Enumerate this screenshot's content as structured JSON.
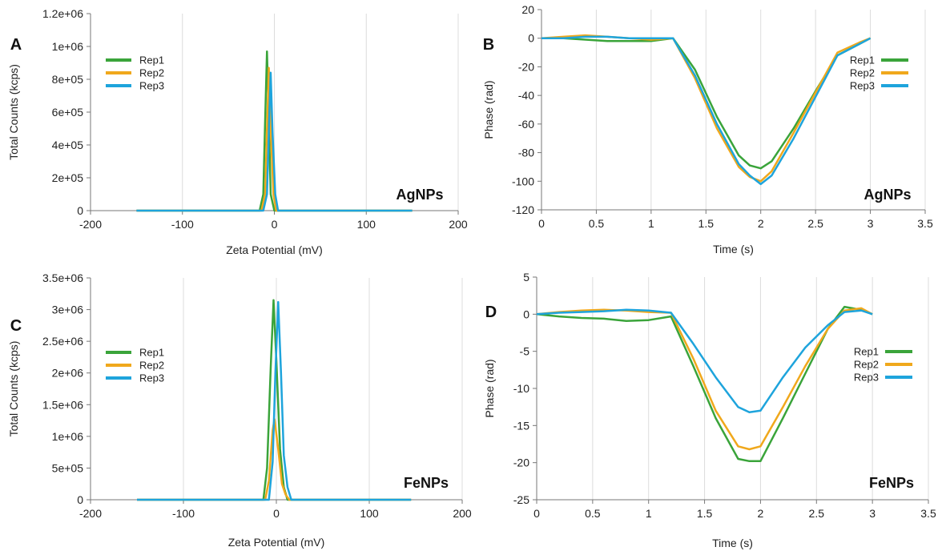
{
  "colors": {
    "Rep1": "#3aa43a",
    "Rep2": "#f0a81c",
    "Rep3": "#1ea4dc"
  },
  "chart_data": [
    {
      "panel": "A",
      "type": "line",
      "annotation": "AgNPs",
      "xlabel": "Zeta Potential (mV)",
      "ylabel": "Total Counts (kcps)",
      "xlim": [
        -200,
        200
      ],
      "ylim": [
        0,
        1200000
      ],
      "xticks": [
        -200,
        -100,
        0,
        100,
        200
      ],
      "xtick_labels": [
        "-200",
        "-100",
        "0",
        "100",
        "200"
      ],
      "yticks": [
        0,
        200000,
        400000,
        600000,
        800000,
        1000000,
        1200000
      ],
      "ytick_labels": [
        "0",
        "2e+05",
        "4e+05",
        "6e+05",
        "8e+05",
        "1e+06",
        "1.2e+06"
      ],
      "grid": true,
      "legend": "top-left",
      "series": [
        {
          "name": "Rep1",
          "color_key": "Rep1",
          "x": [
            -150,
            -16,
            -12,
            -10,
            -8,
            -6,
            -4,
            0,
            150
          ],
          "y": [
            0,
            0,
            100000,
            550000,
            970000,
            550000,
            100000,
            0,
            0
          ]
        },
        {
          "name": "Rep2",
          "color_key": "Rep2",
          "x": [
            -150,
            -14,
            -10,
            -8,
            -6,
            -4,
            -1,
            2,
            150
          ],
          "y": [
            0,
            0,
            100000,
            500000,
            870000,
            500000,
            100000,
            0,
            0
          ]
        },
        {
          "name": "Rep3",
          "color_key": "Rep3",
          "x": [
            -150,
            -12,
            -8,
            -6,
            -4,
            -2,
            1,
            4,
            150
          ],
          "y": [
            0,
            0,
            100000,
            480000,
            840000,
            480000,
            100000,
            0,
            0
          ]
        }
      ]
    },
    {
      "panel": "B",
      "type": "line",
      "annotation": "AgNPs",
      "xlabel": "Time (s)",
      "ylabel": "Phase (rad)",
      "xlim": [
        0,
        3.5
      ],
      "ylim": [
        -120,
        20
      ],
      "xticks": [
        0,
        0.5,
        1,
        1.5,
        2,
        2.5,
        3,
        3.5
      ],
      "xtick_labels": [
        "0",
        "0.5",
        "1",
        "1.5",
        "2",
        "2.5",
        "3",
        "3.5"
      ],
      "yticks": [
        -120,
        -100,
        -80,
        -60,
        -40,
        -20,
        0,
        20
      ],
      "ytick_labels": [
        "-120",
        "-100",
        "-80",
        "-60",
        "-40",
        "-20",
        "0",
        "20"
      ],
      "grid": true,
      "legend": "top-right",
      "series": [
        {
          "name": "Rep1",
          "color_key": "Rep1",
          "x": [
            0,
            0.2,
            0.4,
            0.6,
            0.8,
            1.0,
            1.2,
            1.4,
            1.6,
            1.8,
            1.9,
            2.0,
            2.1,
            2.3,
            2.5,
            2.7,
            2.9,
            3.0
          ],
          "y": [
            0,
            0,
            -1,
            -2,
            -2,
            -2,
            0,
            -22,
            -55,
            -82,
            -89,
            -91,
            -86,
            -63,
            -37,
            -12,
            -4,
            0
          ]
        },
        {
          "name": "Rep2",
          "color_key": "Rep2",
          "x": [
            0,
            0.2,
            0.4,
            0.6,
            0.8,
            1.0,
            1.2,
            1.4,
            1.6,
            1.8,
            1.9,
            2.0,
            2.1,
            2.3,
            2.5,
            2.7,
            2.9,
            3.0
          ],
          "y": [
            0,
            1,
            2,
            1,
            0,
            -1,
            0,
            -28,
            -63,
            -90,
            -97,
            -100,
            -93,
            -66,
            -38,
            -10,
            -3,
            0
          ]
        },
        {
          "name": "Rep3",
          "color_key": "Rep3",
          "x": [
            0,
            0.2,
            0.4,
            0.6,
            0.8,
            1.0,
            1.2,
            1.4,
            1.6,
            1.8,
            1.9,
            2.0,
            2.1,
            2.3,
            2.5,
            2.7,
            2.9,
            3.0
          ],
          "y": [
            0,
            0,
            1,
            1,
            0,
            0,
            0,
            -26,
            -60,
            -88,
            -96,
            -102,
            -96,
            -70,
            -41,
            -12,
            -4,
            0
          ]
        }
      ]
    },
    {
      "panel": "C",
      "type": "line",
      "annotation": "FeNPs",
      "xlabel": "Zeta Potential (mV)",
      "ylabel": "Total Counts (kcps)",
      "xlim": [
        -200,
        200
      ],
      "ylim": [
        0,
        3500000
      ],
      "xticks": [
        -200,
        -100,
        0,
        100,
        200
      ],
      "xtick_labels": [
        "-200",
        "-100",
        "0",
        "100",
        "200"
      ],
      "yticks": [
        0,
        500000,
        1000000,
        1500000,
        2000000,
        2500000,
        3000000,
        3500000
      ],
      "ytick_labels": [
        "0",
        "5e+05",
        "1e+06",
        "1.5e+06",
        "2e+06",
        "2.5e+06",
        "3e+06",
        "3.5e+06"
      ],
      "grid": true,
      "legend": "top-left",
      "series": [
        {
          "name": "Rep1",
          "color_key": "Rep1",
          "x": [
            -150,
            -14,
            -10,
            -6,
            -3,
            0,
            4,
            8,
            12,
            145
          ],
          "y": [
            0,
            0,
            500000,
            2100000,
            3150000,
            2200000,
            800000,
            200000,
            0,
            0
          ]
        },
        {
          "name": "Rep2",
          "color_key": "Rep2",
          "x": [
            -150,
            -12,
            -8,
            -4,
            -2,
            2,
            6,
            10,
            14,
            145
          ],
          "y": [
            0,
            0,
            300000,
            1100000,
            1270000,
            800000,
            250000,
            80000,
            0,
            0
          ]
        },
        {
          "name": "Rep3",
          "color_key": "Rep3",
          "x": [
            -150,
            -8,
            -4,
            -1,
            2,
            5,
            8,
            12,
            16,
            145
          ],
          "y": [
            0,
            0,
            600000,
            2000000,
            3120000,
            2000000,
            700000,
            200000,
            0,
            0
          ]
        }
      ]
    },
    {
      "panel": "D",
      "type": "line",
      "annotation": "FeNPs",
      "xlabel": "Time (s)",
      "ylabel": "Phase (rad)",
      "xlim": [
        0,
        3.5
      ],
      "ylim": [
        -25,
        5
      ],
      "xticks": [
        0,
        0.5,
        1,
        1.5,
        2,
        2.5,
        3,
        3.5
      ],
      "xtick_labels": [
        "0",
        "0.5",
        "1",
        "1.5",
        "2",
        "2.5",
        "3",
        "3.5"
      ],
      "yticks": [
        -25,
        -20,
        -15,
        -10,
        -5,
        0,
        5
      ],
      "ytick_labels": [
        "-25",
        "-20",
        "-15",
        "-10",
        "-5",
        "0",
        "5"
      ],
      "grid": true,
      "legend": "right",
      "series": [
        {
          "name": "Rep1",
          "color_key": "Rep1",
          "x": [
            0,
            0.2,
            0.4,
            0.6,
            0.8,
            1.0,
            1.2,
            1.4,
            1.6,
            1.8,
            1.9,
            2.0,
            2.2,
            2.4,
            2.6,
            2.75,
            2.9,
            3.0
          ],
          "y": [
            0,
            -0.3,
            -0.5,
            -0.6,
            -0.9,
            -0.8,
            -0.3,
            -7,
            -14,
            -19.5,
            -19.8,
            -19.8,
            -14,
            -8,
            -2,
            1.0,
            0.6,
            0
          ]
        },
        {
          "name": "Rep2",
          "color_key": "Rep2",
          "x": [
            0,
            0.2,
            0.4,
            0.6,
            0.8,
            1.0,
            1.2,
            1.4,
            1.6,
            1.8,
            1.9,
            2.0,
            2.2,
            2.4,
            2.6,
            2.75,
            2.9,
            3.0
          ],
          "y": [
            0,
            0.3,
            0.5,
            0.6,
            0.5,
            0.3,
            0.2,
            -6,
            -13,
            -17.8,
            -18.2,
            -17.8,
            -12.5,
            -7,
            -2,
            0.5,
            0.8,
            0
          ]
        },
        {
          "name": "Rep3",
          "color_key": "Rep3",
          "x": [
            0,
            0.2,
            0.4,
            0.6,
            0.8,
            1.0,
            1.2,
            1.4,
            1.6,
            1.8,
            1.9,
            2.0,
            2.2,
            2.4,
            2.6,
            2.75,
            2.9,
            3.0
          ],
          "y": [
            0,
            0.2,
            0.3,
            0.4,
            0.6,
            0.5,
            0.2,
            -4,
            -8.5,
            -12.5,
            -13.2,
            -13.0,
            -8.5,
            -4.5,
            -1.5,
            0.3,
            0.5,
            0
          ]
        }
      ]
    }
  ]
}
